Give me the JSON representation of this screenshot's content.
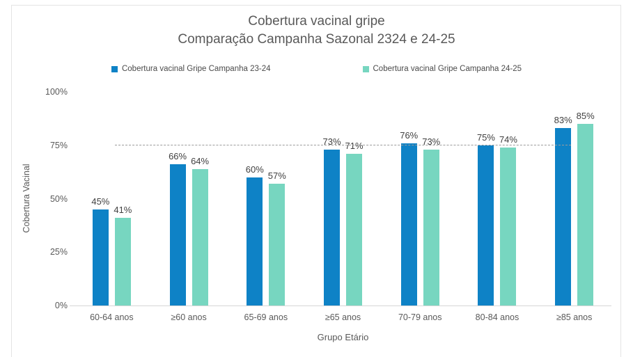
{
  "chart_data": {
    "type": "bar",
    "title": "Cobertura vacinal gripe",
    "subtitle": "Comparação Campanha Sazonal 2324 e 24-25",
    "categories": [
      "60-64 anos",
      "≥60 anos",
      "65-69 anos",
      "≥65 anos",
      "70-79 anos",
      "80-84 anos",
      "≥85 anos"
    ],
    "series": [
      {
        "name": "Cobertura vacinal Gripe Campanha 23-24",
        "color": "#0e82c6",
        "values": [
          45,
          66,
          60,
          73,
          76,
          75,
          83
        ]
      },
      {
        "name": "Cobertura vacinal Gripe Campanha 24-25",
        "color": "#77d6c0",
        "values": [
          41,
          64,
          57,
          71,
          73,
          74,
          85
        ]
      }
    ],
    "value_labels": true,
    "value_suffix": "%",
    "xlabel": "Grupo Etário",
    "ylabel": "Cobertura Vacinal",
    "ylim": [
      0,
      100
    ],
    "ytick_labels": [
      "0%",
      "25%",
      "50%",
      "75%",
      "100%"
    ],
    "grid": false,
    "legend_position": "top-center",
    "reference_line": {
      "value": 75,
      "style": "dashed",
      "color": "#9b9b9b"
    }
  },
  "colors": {
    "series_23_24": "#0e82c6",
    "series_24_25": "#77d6c0",
    "title_text": "#595959",
    "axis_text": "#595959",
    "data_label_text": "#404040",
    "axis_line": "#d6d6d6",
    "reference_line": "#9b9b9b",
    "frame_border": "#e4e4e4",
    "background": "#ffffff"
  }
}
